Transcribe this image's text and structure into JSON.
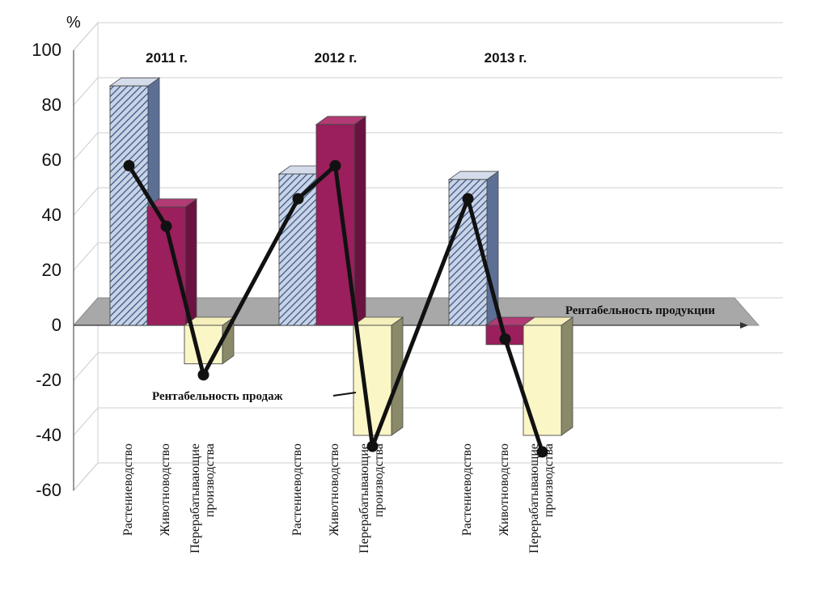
{
  "chart_data": {
    "type": "bar",
    "ylabel": "%",
    "ylim": [
      -60,
      100
    ],
    "yticks": [
      100,
      80,
      60,
      40,
      20,
      0,
      -20,
      -40,
      -60
    ],
    "groups": [
      "2011 г.",
      "2012 г.",
      "2013 г."
    ],
    "categories": [
      "Растениеводство",
      "Животноводство",
      "Перерабатывающие производства"
    ],
    "category_labels": [
      [
        "Растениеводство"
      ],
      [
        "Животноводство"
      ],
      [
        "Перерабатывающие",
        "производства"
      ]
    ],
    "series": [
      {
        "name": "Рентабельность продукции",
        "kind": "bar",
        "values": [
          [
            87,
            43,
            -14
          ],
          [
            55,
            73,
            -40
          ],
          [
            53,
            -7,
            -40
          ]
        ]
      },
      {
        "name": "Рентабельность продаж",
        "kind": "line",
        "values": [
          [
            58,
            36,
            -18
          ],
          [
            46,
            58,
            -44
          ],
          [
            46,
            -5,
            -46
          ]
        ]
      }
    ],
    "colors": {
      "crop": "#9bb0cf",
      "crop_hatch": "#33507f",
      "livestock": "#9a1f5c",
      "livestock_side": "#6b1340",
      "processing": "#fbf6c6",
      "processing_side": "#8a8a6a",
      "floor": "#a8a8a8",
      "line": "#111111"
    }
  }
}
